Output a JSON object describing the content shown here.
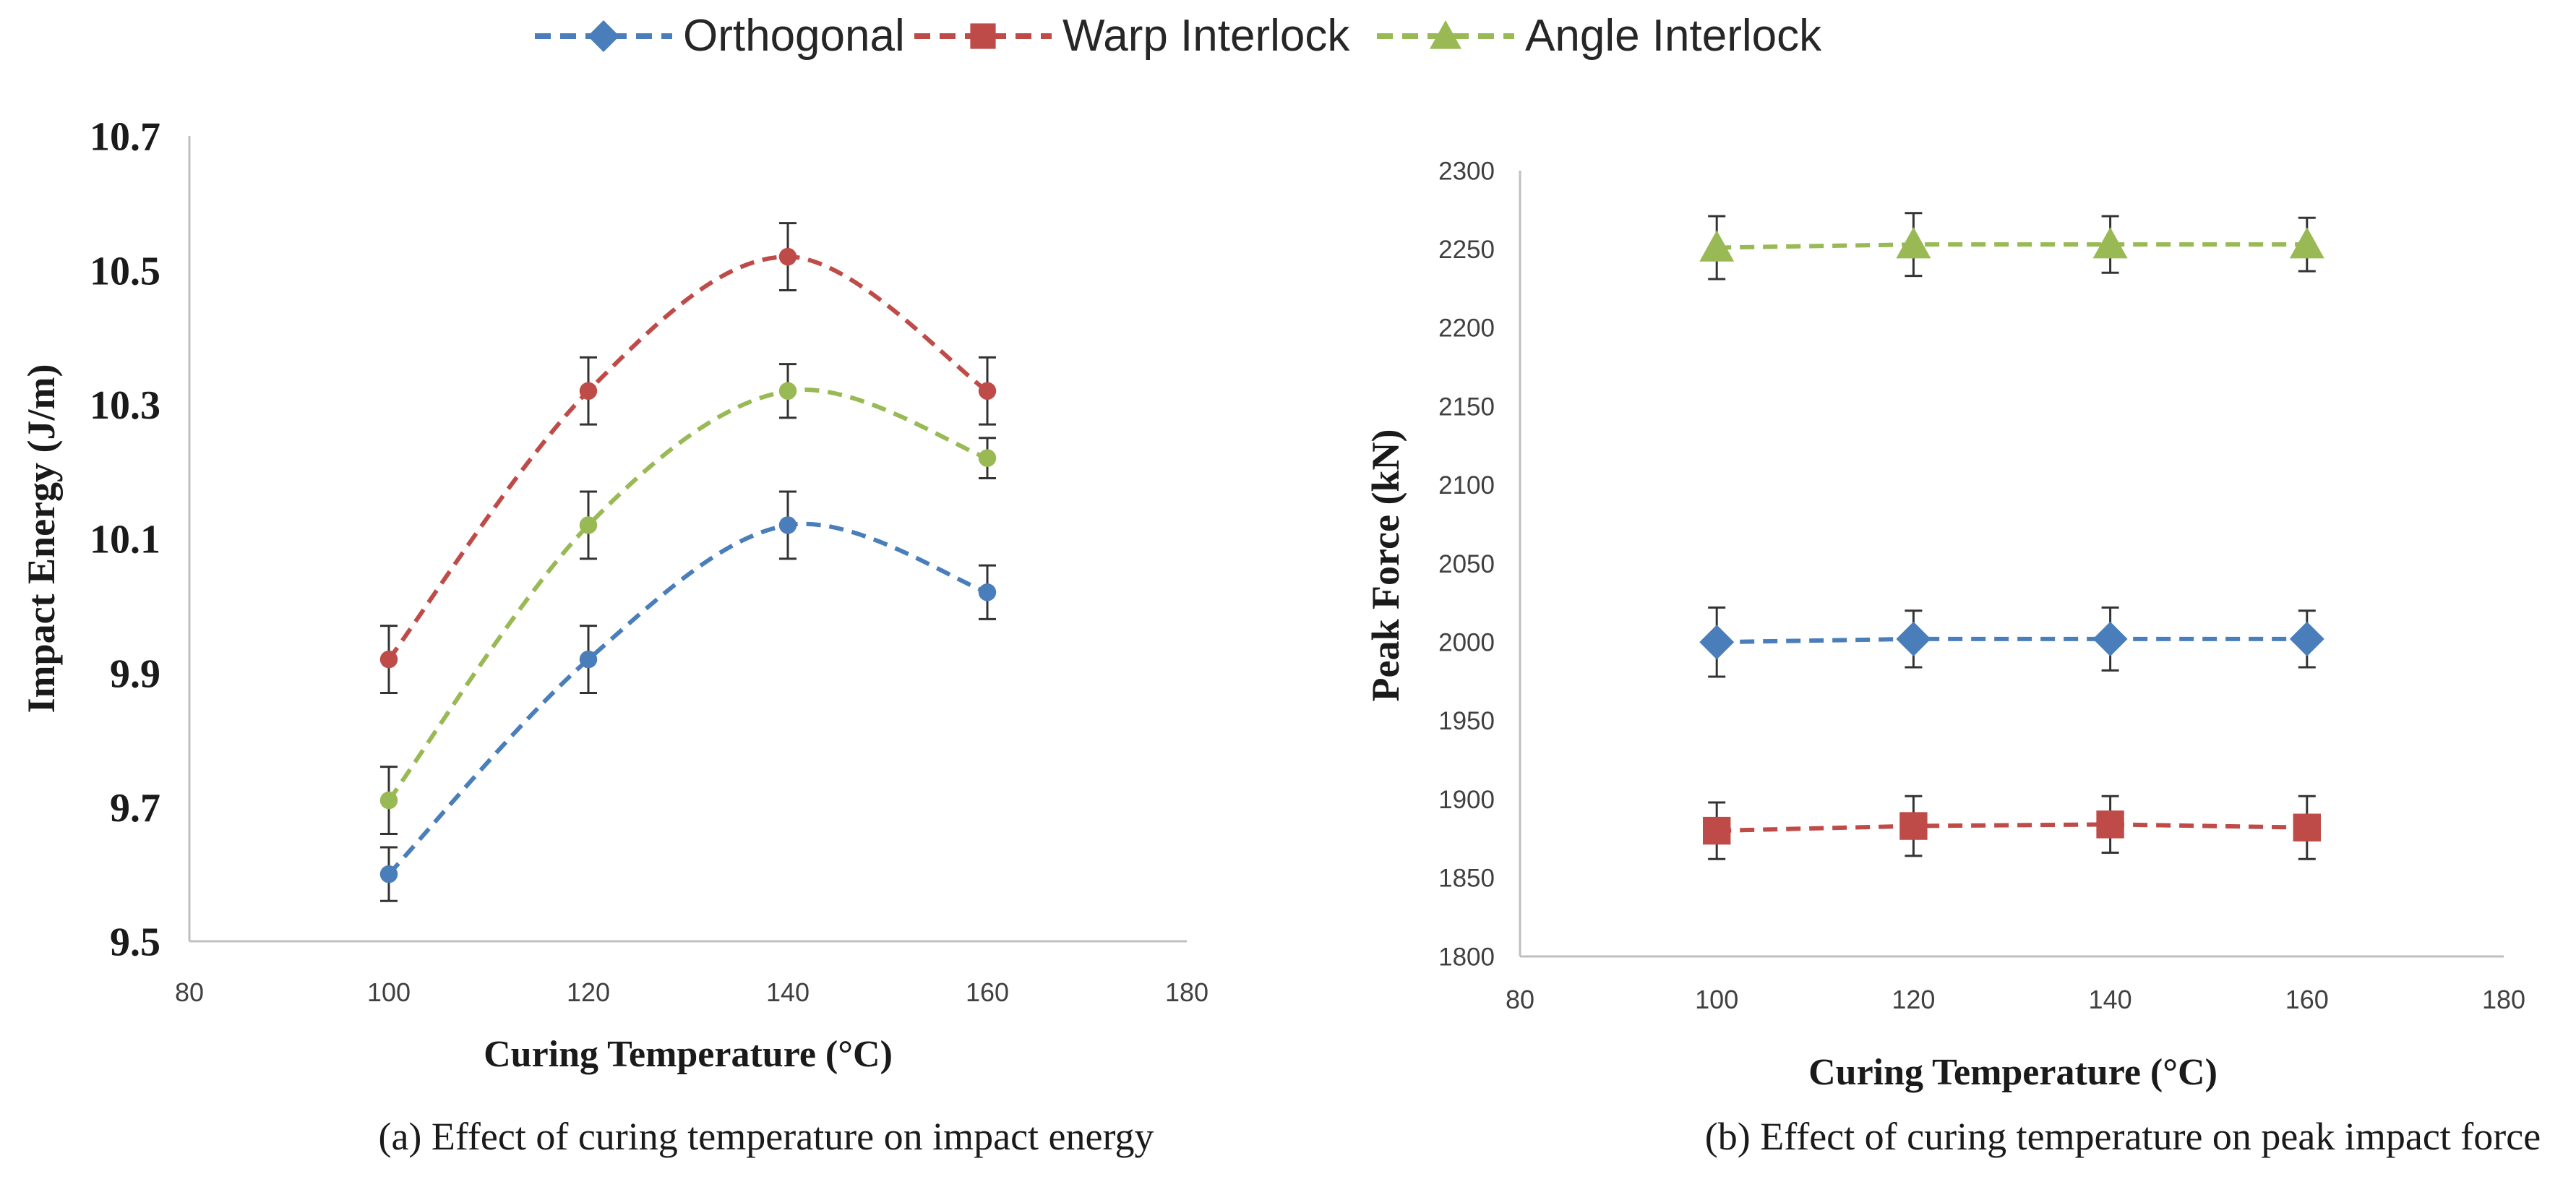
{
  "legend": [
    {
      "name": "Orthogonal",
      "color": "#4a7ebb",
      "marker": "diamond"
    },
    {
      "name": "Warp Interlock",
      "color": "#be4b48",
      "marker": "square"
    },
    {
      "name": "Angle Interlock",
      "color": "#98b954",
      "marker": "triangle"
    }
  ],
  "chart_data": [
    {
      "type": "line",
      "caption": "(a) Effect of curing temperature on impact energy",
      "xlabel": "Curing Temperature (°C)",
      "ylabel": "Impact Energy (J/m)",
      "xlim": [
        80,
        180
      ],
      "ylim": [
        9.5,
        10.7
      ],
      "xticks": [
        "80",
        "100",
        "120",
        "140",
        "160",
        "180"
      ],
      "yticks": [
        "9.5",
        "9.7",
        "9.9",
        "10.1",
        "10.3",
        "10.5",
        "10.7"
      ],
      "x": [
        100,
        120,
        140,
        160
      ],
      "curve": "smooth",
      "grid": false,
      "series": [
        {
          "name": "Orthogonal",
          "color": "#4a7ebb",
          "marker": "circle",
          "values": [
            9.6,
            9.92,
            10.12,
            10.02
          ],
          "errors": [
            0.04,
            0.05,
            0.05,
            0.04
          ]
        },
        {
          "name": "Warp Interlock",
          "color": "#be4b48",
          "marker": "circle",
          "values": [
            9.92,
            10.32,
            10.52,
            10.32
          ],
          "errors": [
            0.05,
            0.05,
            0.05,
            0.05
          ]
        },
        {
          "name": "Angle Interlock",
          "color": "#98b954",
          "marker": "circle",
          "values": [
            9.71,
            10.12,
            10.32,
            10.22
          ],
          "errors": [
            0.05,
            0.05,
            0.04,
            0.03
          ]
        }
      ]
    },
    {
      "type": "line",
      "caption": "(b) Effect of curing temperature on peak impact force",
      "xlabel": "Curing Temperature (°C)",
      "ylabel": "Peak Force (kN)",
      "xlim": [
        80,
        180
      ],
      "ylim": [
        1800,
        2300
      ],
      "xticks": [
        "80",
        "100",
        "120",
        "140",
        "160",
        "180"
      ],
      "yticks": [
        "1800",
        "1850",
        "1900",
        "1950",
        "2000",
        "2050",
        "2100",
        "2150",
        "2200",
        "2250",
        "2300"
      ],
      "x": [
        100,
        120,
        140,
        160
      ],
      "curve": "straight",
      "grid": false,
      "series": [
        {
          "name": "Orthogonal",
          "color": "#4a7ebb",
          "marker": "diamond",
          "values": [
            2000,
            2002,
            2002,
            2002
          ],
          "errors": [
            22,
            18,
            20,
            18
          ]
        },
        {
          "name": "Warp Interlock",
          "color": "#be4b48",
          "marker": "square",
          "values": [
            1880,
            1883,
            1884,
            1882
          ],
          "errors": [
            18,
            19,
            18,
            20
          ]
        },
        {
          "name": "Angle Interlock",
          "color": "#98b954",
          "marker": "triangle",
          "values": [
            2251,
            2253,
            2253,
            2253
          ],
          "errors": [
            20,
            20,
            18,
            17
          ]
        }
      ]
    }
  ]
}
